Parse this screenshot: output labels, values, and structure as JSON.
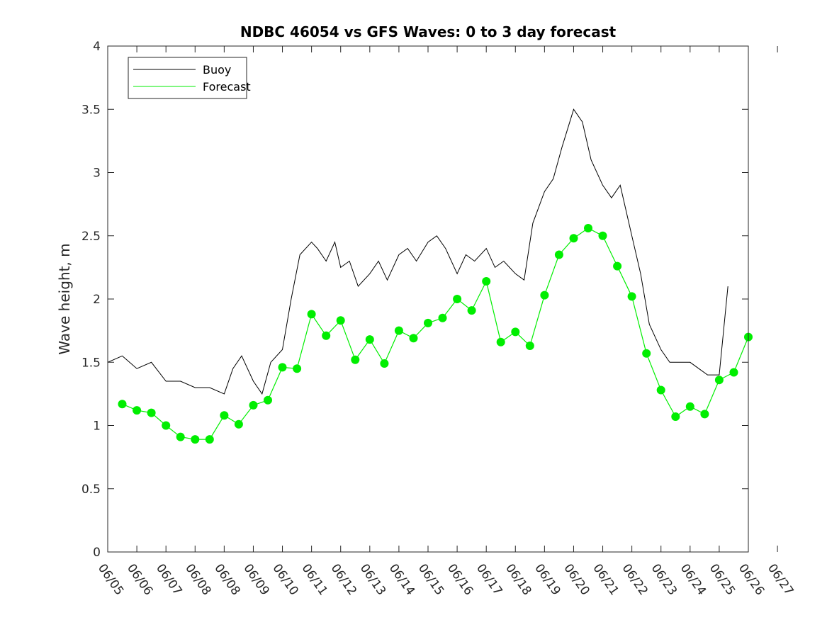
{
  "chart_data": {
    "type": "line",
    "title": "NDBC 46054 vs GFS Waves: 0 to 3 day forecast",
    "xlabel": "",
    "ylabel": "Wave height, m",
    "xlim": [
      0,
      22
    ],
    "ylim": [
      0,
      4
    ],
    "x_tick_labels": [
      "06/05",
      "06/06",
      "06/07",
      "06/08",
      "06/08",
      "06/09",
      "06/10",
      "06/11",
      "06/12",
      "06/13",
      "06/14",
      "06/15",
      "06/16",
      "06/17",
      "06/18",
      "06/19",
      "06/20",
      "06/21",
      "06/22",
      "06/23",
      "06/24",
      "06/25",
      "06/26",
      "06/27"
    ],
    "y_ticks": [
      0,
      0.5,
      1,
      1.5,
      2,
      2.5,
      3,
      3.5,
      4
    ],
    "y_tick_labels": [
      "0",
      "0.5",
      "1",
      "1.5",
      "2",
      "2.5",
      "3",
      "3.5",
      "4"
    ],
    "grid": false,
    "legend": {
      "position": "top-left",
      "entries": [
        "Buoy",
        "Forecast"
      ]
    },
    "colors": {
      "buoy": "#000000",
      "forecast": "#00ee00"
    },
    "series": [
      {
        "name": "Buoy",
        "x": [
          0,
          0.5,
          1,
          1.5,
          2,
          2.5,
          3,
          3.5,
          4,
          4.3,
          4.6,
          5,
          5.3,
          5.6,
          6,
          6.3,
          6.6,
          7,
          7.2,
          7.5,
          7.8,
          8,
          8.3,
          8.6,
          9,
          9.3,
          9.6,
          10,
          10.3,
          10.6,
          11,
          11.3,
          11.6,
          12,
          12.3,
          12.6,
          13,
          13.3,
          13.6,
          14,
          14.3,
          14.6,
          15,
          15.3,
          15.6,
          16,
          16.3,
          16.6,
          17,
          17.3,
          17.6,
          18,
          18.3,
          18.6,
          19,
          19.3,
          19.6,
          20,
          20.3,
          20.6,
          21,
          21.3
        ],
        "values": [
          1.5,
          1.55,
          1.45,
          1.5,
          1.35,
          1.35,
          1.3,
          1.3,
          1.25,
          1.45,
          1.55,
          1.35,
          1.25,
          1.5,
          1.6,
          2.0,
          2.35,
          2.45,
          2.4,
          2.3,
          2.45,
          2.25,
          2.3,
          2.1,
          2.2,
          2.3,
          2.15,
          2.35,
          2.4,
          2.3,
          2.45,
          2.5,
          2.4,
          2.2,
          2.35,
          2.3,
          2.4,
          2.25,
          2.3,
          2.2,
          2.15,
          2.6,
          2.85,
          2.95,
          3.2,
          3.5,
          3.4,
          3.1,
          2.9,
          2.8,
          2.9,
          2.5,
          2.2,
          1.8,
          1.6,
          1.5,
          1.5,
          1.5,
          1.45,
          1.4,
          1.4,
          2.1
        ]
      },
      {
        "name": "Forecast",
        "x": [
          0.5,
          1,
          1.5,
          2,
          2.5,
          3,
          3.5,
          4,
          4.5,
          5,
          5.5,
          6,
          6.5,
          7,
          7.5,
          8,
          8.5,
          9,
          9.5,
          10,
          10.5,
          11,
          11.5,
          12,
          12.5,
          13,
          13.5,
          14,
          14.5,
          15,
          15.5,
          16,
          16.5,
          17,
          17.5,
          18,
          18.5,
          19,
          19.5,
          20,
          20.5,
          21,
          21.5,
          22
        ],
        "values": [
          1.17,
          1.12,
          1.1,
          1.0,
          0.91,
          0.89,
          0.89,
          1.08,
          1.01,
          1.16,
          1.2,
          1.46,
          1.45,
          1.88,
          1.71,
          1.83,
          1.52,
          1.68,
          1.49,
          1.75,
          1.69,
          1.81,
          1.85,
          2.0,
          1.91,
          2.14,
          1.66,
          1.74,
          1.63,
          2.03,
          2.35,
          2.48,
          2.56,
          2.5,
          2.26,
          2.02,
          1.57,
          1.28,
          1.07,
          1.15,
          1.09,
          1.36,
          1.42,
          1.7
        ]
      }
    ]
  }
}
